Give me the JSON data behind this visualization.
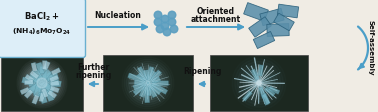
{
  "bg_color": "#f0ece4",
  "box_facecolor": "#ddeef8",
  "box_edgecolor": "#6ab0d0",
  "arrow_color": "#4a9ec8",
  "text_color": "#111111",
  "bold_text_color": "#111111",
  "dot_color": "#5a9ec0",
  "plate_color": "#5a8faa",
  "plate_edge_color": "#2a5f7a",
  "sem_bg": "#1c2820",
  "sem_flower_color1": "#7ab8c8",
  "sem_flower_color2": "#aad0dc",
  "sem_flower_color3": "#c8dde4",
  "figsize": [
    3.78,
    1.12
  ],
  "dpi": 100,
  "label_nucleation": "Nucleation",
  "label_oriented": "Oriented",
  "label_attachment": "attachment",
  "label_selfassembly": "Self-assembly",
  "label_ripening": "Ripening",
  "label_further": "Further",
  "label_furtherripening": "ripening",
  "box_text1": "BaCl",
  "box_text2": "(NH",
  "xlim": 378,
  "ylim": 112
}
